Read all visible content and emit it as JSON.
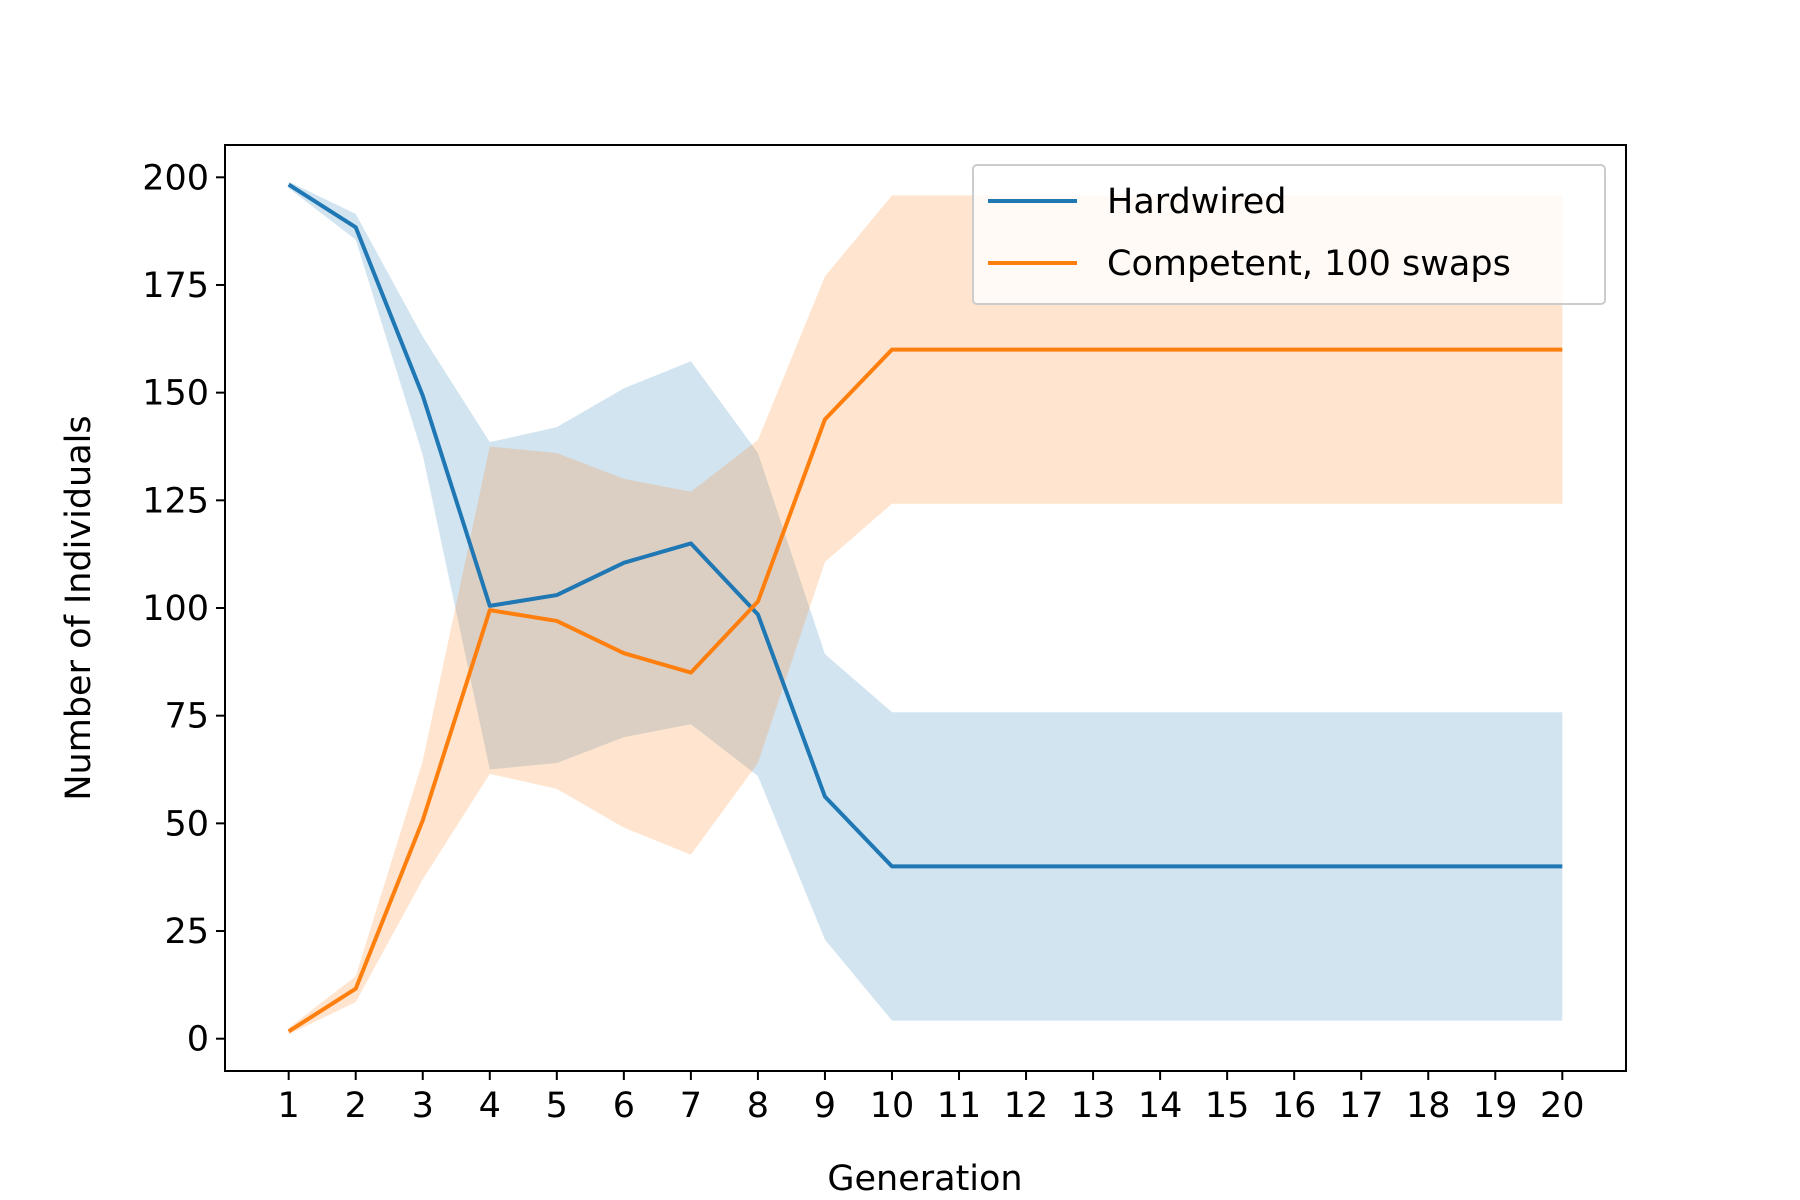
{
  "chart_data": {
    "type": "line",
    "title": "",
    "xlabel": "Generation",
    "ylabel": "Number of Individuals",
    "x": [
      1,
      2,
      3,
      4,
      5,
      6,
      7,
      8,
      9,
      10,
      11,
      12,
      13,
      14,
      15,
      16,
      17,
      18,
      19,
      20
    ],
    "xlim": [
      0.05,
      20.95
    ],
    "ylim": [
      -7.5,
      207.5
    ],
    "yticks": [
      0,
      25,
      50,
      75,
      100,
      125,
      150,
      175,
      200
    ],
    "xticks": [
      1,
      2,
      3,
      4,
      5,
      6,
      7,
      8,
      9,
      10,
      11,
      12,
      13,
      14,
      15,
      16,
      17,
      18,
      19,
      20
    ],
    "grid": false,
    "legend": {
      "position": "top-right"
    },
    "series": [
      {
        "name": "Hardwired",
        "color": "#1f77b4",
        "band_color": "#1f77b4",
        "values": [
          198.3,
          188.4,
          149.3,
          100.5,
          103,
          110.5,
          115,
          98.5,
          56.2,
          40,
          40,
          40,
          40,
          40,
          40,
          40,
          40,
          40,
          40,
          40
        ],
        "upper": [
          199,
          191.5,
          163,
          138.5,
          142,
          151,
          157.3,
          136,
          89.3,
          75.8,
          75.8,
          75.8,
          75.8,
          75.8,
          75.8,
          75.8,
          75.8,
          75.8,
          75.8,
          75.8
        ],
        "lower": [
          197.5,
          185.5,
          135.5,
          62.5,
          64,
          70,
          73,
          61,
          23,
          4.2,
          4.2,
          4.2,
          4.2,
          4.2,
          4.2,
          4.2,
          4.2,
          4.2,
          4.2,
          4.2
        ]
      },
      {
        "name": "Competent, 100 swaps",
        "color": "#ff7f0e",
        "band_color": "#ff7f0e",
        "values": [
          1.7,
          11.6,
          50.7,
          99.5,
          97,
          89.5,
          85,
          101.5,
          143.8,
          160,
          160,
          160,
          160,
          160,
          160,
          160,
          160,
          160,
          160,
          160
        ],
        "upper": [
          2.5,
          14.5,
          64.5,
          137.5,
          136,
          130,
          127,
          139,
          177,
          195.8,
          195.8,
          195.8,
          195.8,
          195.8,
          195.8,
          195.8,
          195.8,
          195.8,
          195.8,
          195.8
        ],
        "lower": [
          1,
          8.5,
          37,
          61.5,
          58,
          49,
          42.7,
          64,
          110.7,
          124.2,
          124.2,
          124.2,
          124.2,
          124.2,
          124.2,
          124.2,
          124.2,
          124.2,
          124.2,
          124.2
        ]
      }
    ]
  }
}
